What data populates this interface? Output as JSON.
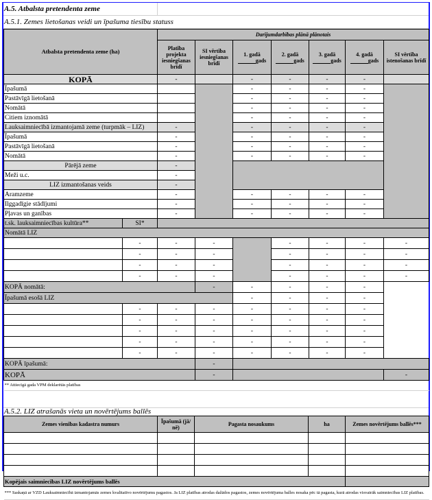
{
  "title": "A.5. Atbalsta pretendenta zeme",
  "section1": {
    "title": "A.5.1. Zemes lietošanas veidi un īpašuma tiesību statuss",
    "header": {
      "row_label": "Atbalsta pretendenta zeme (ha)",
      "group": "Darījumdarbības plānā plānotais",
      "cols": [
        "Platība projekta iesniegšanas brīdī",
        "SI vērtība iesniegšanas brīdī",
        "1. gadā",
        "2. gadā",
        "3. gadā",
        "4. gadā",
        "SI vērtība istenošanas brīdī"
      ],
      "gads": "gads"
    },
    "kopa": {
      "label": "KOPĀ",
      "values": [
        "-",
        "-",
        "-",
        "-",
        "-"
      ]
    },
    "owned": [
      {
        "label": "Īpašumā",
        "values": [
          "-",
          "-",
          "-",
          "-"
        ]
      },
      {
        "label": "Pastāvīgā lietošanā",
        "values": [
          "-",
          "-",
          "-",
          "-"
        ]
      },
      {
        "label": "Nomātā",
        "values": [
          "-",
          "-",
          "-",
          "-"
        ]
      },
      {
        "label": "Citiem iznomātā",
        "values": [
          "-",
          "-",
          "-",
          "-"
        ]
      }
    ],
    "liz": {
      "label": "Lauksaimniecībā izmantojamā zeme (turpmāk – LIZ)",
      "values": [
        "-",
        "-",
        "-",
        "-",
        "-"
      ]
    },
    "liz_rows": [
      {
        "label": "Īpašumā",
        "values": [
          "-",
          "-",
          "-",
          "-",
          "-"
        ]
      },
      {
        "label": "Pastāvīgā lietošanā",
        "values": [
          "-",
          "-",
          "-",
          "-",
          "-"
        ]
      },
      {
        "label": "Nomātā",
        "values": [
          "-",
          "-",
          "-",
          "-",
          "-"
        ]
      }
    ],
    "other": {
      "label": "Pārējā zeme",
      "value": "-"
    },
    "forest": {
      "label": "Meži u.c.",
      "value": "-"
    },
    "use_type": {
      "label": "LIZ izmantošanas veids",
      "value": "-"
    },
    "use_rows": [
      {
        "label": "Aramzeme",
        "values": [
          "-",
          "-",
          "-",
          "-",
          "-"
        ]
      },
      {
        "label": "Ilggadīgie stādījumi",
        "values": [
          "-",
          "-",
          "-",
          "-",
          "-"
        ]
      },
      {
        "label": "Pļavas un ganības",
        "values": [
          "-",
          "-",
          "-",
          "-",
          "-"
        ]
      }
    ],
    "crop": {
      "label": "t.sk. lauksaimniecības kultūra**",
      "si": "SI*"
    },
    "rented_title": "Nomātā LIZ",
    "rented_rows": [
      [
        "-",
        "-",
        "-",
        "-",
        "-",
        "-",
        "-"
      ],
      [
        "-",
        "-",
        "-",
        "-",
        "-",
        "-",
        "-"
      ],
      [
        "-",
        "-",
        "-",
        "-",
        "-",
        "-",
        "-"
      ],
      [
        "-",
        "-",
        "-",
        "-",
        "-",
        "-",
        "-"
      ]
    ],
    "rented_total": {
      "label": "KOPĀ nomātā:",
      "value": "-",
      "values": [
        "-",
        "-",
        "-",
        "-"
      ]
    },
    "own_title": "Īpašumā esošā LIZ",
    "own_title_values": [
      "-",
      "-",
      "-",
      "-"
    ],
    "own_rows": [
      [
        "-",
        "-",
        "-",
        "-",
        "-",
        "-",
        "-"
      ],
      [
        "-",
        "-",
        "-",
        "-",
        "-",
        "-",
        "-"
      ],
      [
        "-",
        "-",
        "-",
        "-",
        "-",
        "-",
        "-"
      ],
      [
        "-",
        "-",
        "-",
        "-",
        "-",
        "-",
        "-"
      ],
      [
        "-",
        "-",
        "-",
        "-",
        "-",
        "-",
        "-"
      ]
    ],
    "own_total": {
      "label": "KOPĀ īpašumā:",
      "value": "-"
    },
    "total": {
      "label": "KOPĀ",
      "value": "-",
      "si": "-"
    },
    "footnote": "** Attiecīgā gada VPM deklarētās platības"
  },
  "section2": {
    "title": "A.5.2. LIZ  atrašanās vieta un novērtējums ballēs",
    "cols": [
      "Zemes vienības kadastra numurs",
      "Īpašumā (jā/ nē)",
      "Pagasta nosaukums",
      "ha",
      "Zemes novērtējums ballēs***"
    ],
    "total_label": "Kopējais saimniecības LIZ novērtējums ballēs",
    "footnote": "*** Saskaņā ar VZD Lauksaimniecībā izmantojamās zemes kvalitatīvo novērtējumu pagastos. Ja LIZ platības atrodas dažādos pagastos, zemes novērtējuma balles nosaka pēc tā pagasta, kurā atrodas  visvairāk saimniecības LIZ platības."
  },
  "colors": {
    "gray": "#c0c0c0",
    "light_gray": "#dcdcdc",
    "frame": "#1a1aff"
  }
}
